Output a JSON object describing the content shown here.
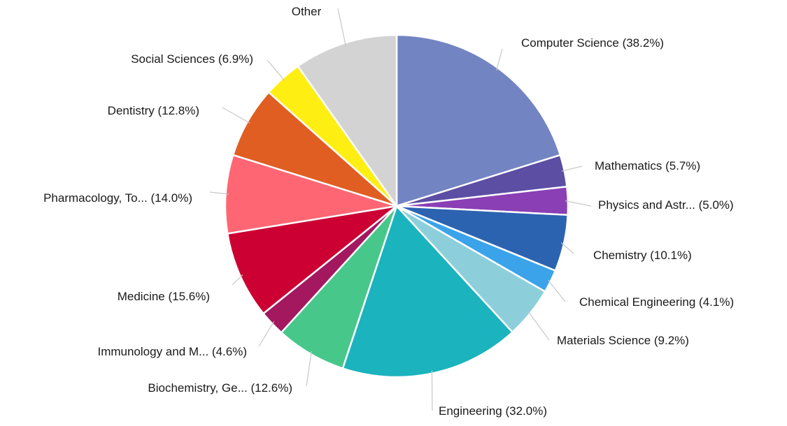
{
  "chart_data": {
    "type": "pie",
    "start_angle_deg": 0,
    "direction": "clockwise",
    "slices": [
      {
        "label": "Computer Science (38.2%)",
        "value": 38.2,
        "color": "#7384c2"
      },
      {
        "label": "Mathematics (5.7%)",
        "value": 5.7,
        "color": "#5c4ea3"
      },
      {
        "label": "Physics and Astr... (5.0%)",
        "value": 5.0,
        "color": "#8a3fb4"
      },
      {
        "label": "Chemistry (10.1%)",
        "value": 10.1,
        "color": "#2b63b0"
      },
      {
        "label": "Chemical Engineering (4.1%)",
        "value": 4.1,
        "color": "#3aa3ea"
      },
      {
        "label": "Materials Science (9.2%)",
        "value": 9.2,
        "color": "#8ccfdb"
      },
      {
        "label": "Engineering (32.0%)",
        "value": 32.0,
        "color": "#1bb3bd"
      },
      {
        "label": "Biochemistry, Ge... (12.6%)",
        "value": 12.6,
        "color": "#48c78a"
      },
      {
        "label": "Immunology and M... (4.6%)",
        "value": 4.6,
        "color": "#a3185f"
      },
      {
        "label": "Medicine (15.6%)",
        "value": 15.6,
        "color": "#cc0033"
      },
      {
        "label": "Pharmacology, To... (14.0%)",
        "value": 14.0,
        "color": "#ff6673"
      },
      {
        "label": "Dentistry (12.8%)",
        "value": 12.8,
        "color": "#e05e22"
      },
      {
        "label": "Social Sciences (6.9%)",
        "value": 6.9,
        "color": "#ffee11"
      },
      {
        "label": "Other",
        "value": 18.5,
        "color": "#d3d3d3"
      }
    ]
  }
}
